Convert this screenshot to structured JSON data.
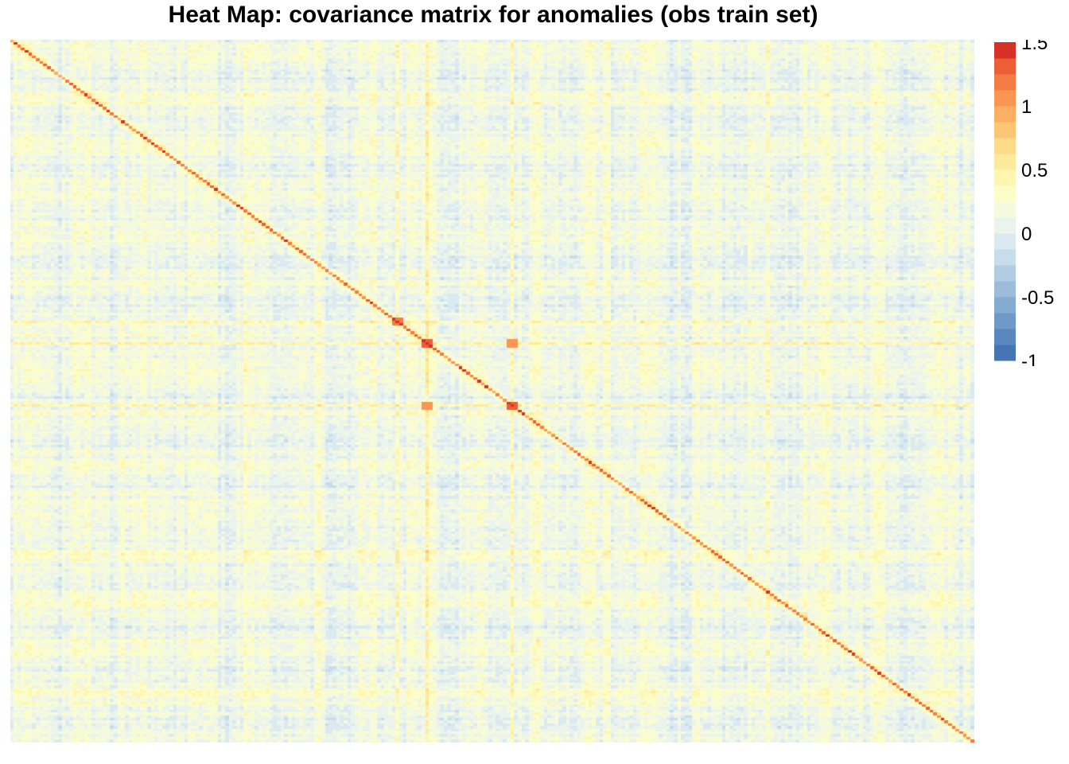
{
  "chart_data": {
    "type": "heatmap",
    "title": "Heat Map: covariance matrix for anomalies (obs train set)",
    "xlabel": "",
    "ylabel": "",
    "matrix_size_estimate": 260,
    "value_range": [
      -1,
      1.5
    ],
    "diagonal_pattern": "high covariance along main diagonal from top-left to bottom-right",
    "notable_bands": [
      {
        "row_fraction": 0.4,
        "col_fraction": 0.4,
        "value": 1.2
      },
      {
        "row_fraction": 0.43,
        "col_fraction": 0.43,
        "value": 1.3
      },
      {
        "row_fraction": 0.52,
        "col_fraction": 0.52,
        "value": 1.3
      },
      {
        "row_fraction": 0.43,
        "col_fraction": 0.52,
        "value": 1.1
      },
      {
        "row_fraction": 0.52,
        "col_fraction": 0.43,
        "value": 1.1
      }
    ],
    "colorbar": {
      "ticks": [
        1.5,
        1,
        0.5,
        0,
        -0.5,
        -1
      ],
      "tick_labels": [
        "1.5",
        "1",
        "0.5",
        "0",
        "-0.5",
        "-1"
      ],
      "min": -1,
      "max": 1.5,
      "steps": 20,
      "colors": [
        "#4575b4",
        "#5a87bf",
        "#6f99c8",
        "#86abd1",
        "#9cbcda",
        "#b2cde3",
        "#c7ddec",
        "#dbeaf1",
        "#eaf4ec",
        "#f5fadf",
        "#fdfec7",
        "#fef6b1",
        "#feea9c",
        "#fedb88",
        "#fdc675",
        "#fcae63",
        "#f99653",
        "#f47c45",
        "#ea5f38",
        "#d73027"
      ]
    },
    "grid": false,
    "legend_placement": "right"
  }
}
